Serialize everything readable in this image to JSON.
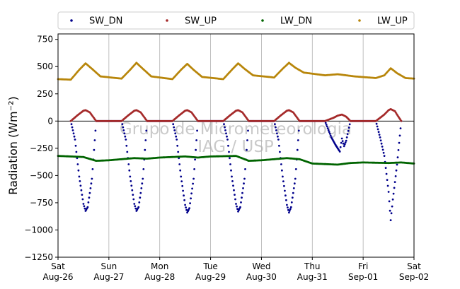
{
  "chart_data": {
    "type": "scatter",
    "ylabel": "Radiation (Wm⁻²)",
    "ylim": [
      -1250,
      800
    ],
    "yticks": [
      -1250,
      -1000,
      -750,
      -500,
      -250,
      0,
      250,
      500,
      750
    ],
    "ytick_labels": [
      "−1250",
      "−1000",
      "−750",
      "−500",
      "−250",
      "0",
      "250",
      "500",
      "750"
    ],
    "xlim": [
      "2023-08-26 00:00",
      "2023-09-02 00:00"
    ],
    "xticks": [
      {
        "date": "2023-08-26",
        "day": "Sat",
        "label": "Aug-26"
      },
      {
        "date": "2023-08-27",
        "day": "Sun",
        "label": "Aug-27"
      },
      {
        "date": "2023-08-28",
        "day": "Mon",
        "label": "Aug-28"
      },
      {
        "date": "2023-08-29",
        "day": "Tue",
        "label": "Aug-29"
      },
      {
        "date": "2023-08-30",
        "day": "Wed",
        "label": "Aug-30"
      },
      {
        "date": "2023-08-31",
        "day": "Thu",
        "label": "Aug-31"
      },
      {
        "date": "2023-09-01",
        "day": "Fri",
        "label": "Sep-01"
      },
      {
        "date": "2023-09-02",
        "day": "Sat",
        "label": "Sep-02"
      }
    ],
    "grid": "vertical",
    "zero_line": true,
    "legend_position": "top",
    "watermark": [
      "Grupo de Micrometeorologia",
      "IAG / USP"
    ],
    "series": [
      {
        "name": "SW_DN",
        "color": "#00008b",
        "points": [
          [
            "2023-08-26 06:00",
            0
          ],
          [
            "2023-08-26 08:00",
            -170
          ],
          [
            "2023-08-26 10:00",
            -510
          ],
          [
            "2023-08-26 12:00",
            -760
          ],
          [
            "2023-08-26 13:00",
            -825
          ],
          [
            "2023-08-26 14:00",
            -790
          ],
          [
            "2023-08-26 16:00",
            -530
          ],
          [
            "2023-08-26 18:00",
            0
          ],
          [
            "2023-08-27 06:00",
            0
          ],
          [
            "2023-08-27 08:00",
            -170
          ],
          [
            "2023-08-27 10:00",
            -510
          ],
          [
            "2023-08-27 12:00",
            -760
          ],
          [
            "2023-08-27 13:00",
            -825
          ],
          [
            "2023-08-27 14:00",
            -790
          ],
          [
            "2023-08-27 16:00",
            -530
          ],
          [
            "2023-08-27 18:00",
            0
          ],
          [
            "2023-08-28 06:00",
            0
          ],
          [
            "2023-08-28 08:00",
            -170
          ],
          [
            "2023-08-28 10:00",
            -510
          ],
          [
            "2023-08-28 12:00",
            -770
          ],
          [
            "2023-08-28 13:00",
            -840
          ],
          [
            "2023-08-28 14:00",
            -800
          ],
          [
            "2023-08-28 16:00",
            -530
          ],
          [
            "2023-08-28 18:00",
            0
          ],
          [
            "2023-08-29 06:00",
            0
          ],
          [
            "2023-08-29 08:00",
            -170
          ],
          [
            "2023-08-29 10:00",
            -510
          ],
          [
            "2023-08-29 12:00",
            -760
          ],
          [
            "2023-08-29 13:00",
            -830
          ],
          [
            "2023-08-29 14:00",
            -790
          ],
          [
            "2023-08-29 16:00",
            -530
          ],
          [
            "2023-08-29 18:00",
            0
          ],
          [
            "2023-08-30 06:00",
            0
          ],
          [
            "2023-08-30 08:00",
            -170
          ],
          [
            "2023-08-30 10:00",
            -510
          ],
          [
            "2023-08-30 12:00",
            -770
          ],
          [
            "2023-08-30 13:00",
            -840
          ],
          [
            "2023-08-30 14:00",
            -790
          ],
          [
            "2023-08-30 16:00",
            -530
          ],
          [
            "2023-08-30 18:00",
            0
          ],
          [
            "2023-08-31 06:00",
            0
          ],
          [
            "2023-08-31 09:00",
            -150
          ],
          [
            "2023-08-31 11:00",
            -220
          ],
          [
            "2023-08-31 13:00",
            -280
          ],
          [
            "2023-08-31 14:00",
            -160
          ],
          [
            "2023-08-31 15:00",
            -230
          ],
          [
            "2023-08-31 16:00",
            -180
          ],
          [
            "2023-08-31 18:00",
            0
          ],
          [
            "2023-09-01 06:00",
            0
          ],
          [
            "2023-09-01 08:00",
            -150
          ],
          [
            "2023-09-01 10:00",
            -320
          ],
          [
            "2023-09-01 12:00",
            -650
          ],
          [
            "2023-09-01 13:00",
            -910
          ],
          [
            "2023-09-01 14:00",
            -720
          ],
          [
            "2023-09-01 16:00",
            -400
          ],
          [
            "2023-09-01 18:00",
            0
          ]
        ]
      },
      {
        "name": "SW_UP",
        "color": "#a52a2a",
        "points": [
          [
            "2023-08-26 06:00",
            0
          ],
          [
            "2023-08-26 09:00",
            50
          ],
          [
            "2023-08-26 12:00",
            95
          ],
          [
            "2023-08-26 13:00",
            100
          ],
          [
            "2023-08-26 15:00",
            80
          ],
          [
            "2023-08-26 18:00",
            0
          ],
          [
            "2023-08-27 06:00",
            0
          ],
          [
            "2023-08-27 09:00",
            50
          ],
          [
            "2023-08-27 12:00",
            95
          ],
          [
            "2023-08-27 13:00",
            100
          ],
          [
            "2023-08-27 15:00",
            80
          ],
          [
            "2023-08-27 18:00",
            0
          ],
          [
            "2023-08-28 06:00",
            0
          ],
          [
            "2023-08-28 09:00",
            50
          ],
          [
            "2023-08-28 12:00",
            95
          ],
          [
            "2023-08-28 13:00",
            100
          ],
          [
            "2023-08-28 15:00",
            80
          ],
          [
            "2023-08-28 18:00",
            0
          ],
          [
            "2023-08-29 06:00",
            0
          ],
          [
            "2023-08-29 09:00",
            50
          ],
          [
            "2023-08-29 12:00",
            95
          ],
          [
            "2023-08-29 13:00",
            100
          ],
          [
            "2023-08-29 15:00",
            80
          ],
          [
            "2023-08-29 18:00",
            0
          ],
          [
            "2023-08-30 06:00",
            0
          ],
          [
            "2023-08-30 09:00",
            50
          ],
          [
            "2023-08-30 12:00",
            95
          ],
          [
            "2023-08-30 13:00",
            100
          ],
          [
            "2023-08-30 15:00",
            80
          ],
          [
            "2023-08-30 18:00",
            0
          ],
          [
            "2023-08-31 06:00",
            0
          ],
          [
            "2023-08-31 10:00",
            30
          ],
          [
            "2023-08-31 12:00",
            50
          ],
          [
            "2023-08-31 14:00",
            60
          ],
          [
            "2023-08-31 16:00",
            40
          ],
          [
            "2023-08-31 18:00",
            0
          ],
          [
            "2023-09-01 06:00",
            0
          ],
          [
            "2023-09-01 10:00",
            60
          ],
          [
            "2023-09-01 12:00",
            100
          ],
          [
            "2023-09-01 13:00",
            110
          ],
          [
            "2023-09-01 15:00",
            90
          ],
          [
            "2023-09-01 18:00",
            0
          ]
        ]
      },
      {
        "name": "LW_DN",
        "color": "#006400",
        "points": [
          [
            "2023-08-26 00:00",
            -320
          ],
          [
            "2023-08-26 12:00",
            -330
          ],
          [
            "2023-08-26 18:00",
            -365
          ],
          [
            "2023-08-27 00:00",
            -360
          ],
          [
            "2023-08-27 12:00",
            -340
          ],
          [
            "2023-08-27 18:00",
            -345
          ],
          [
            "2023-08-28 00:00",
            -335
          ],
          [
            "2023-08-28 12:00",
            -325
          ],
          [
            "2023-08-28 18:00",
            -335
          ],
          [
            "2023-08-29 00:00",
            -325
          ],
          [
            "2023-08-29 12:00",
            -320
          ],
          [
            "2023-08-29 18:00",
            -365
          ],
          [
            "2023-08-30 00:00",
            -360
          ],
          [
            "2023-08-30 12:00",
            -340
          ],
          [
            "2023-08-30 18:00",
            -350
          ],
          [
            "2023-08-31 00:00",
            -390
          ],
          [
            "2023-08-31 12:00",
            -400
          ],
          [
            "2023-08-31 18:00",
            -385
          ],
          [
            "2023-09-01 00:00",
            -380
          ],
          [
            "2023-09-01 12:00",
            -385
          ],
          [
            "2023-09-01 18:00",
            -380
          ],
          [
            "2023-09-02 00:00",
            -390
          ]
        ]
      },
      {
        "name": "LW_UP",
        "color": "#b8860b",
        "points": [
          [
            "2023-08-26 00:00",
            385
          ],
          [
            "2023-08-26 06:00",
            380
          ],
          [
            "2023-08-26 10:00",
            470
          ],
          [
            "2023-08-26 13:00",
            530
          ],
          [
            "2023-08-26 16:00",
            480
          ],
          [
            "2023-08-26 20:00",
            410
          ],
          [
            "2023-08-27 06:00",
            390
          ],
          [
            "2023-08-27 10:00",
            470
          ],
          [
            "2023-08-27 13:00",
            535
          ],
          [
            "2023-08-27 16:00",
            480
          ],
          [
            "2023-08-27 20:00",
            410
          ],
          [
            "2023-08-28 06:00",
            385
          ],
          [
            "2023-08-28 10:00",
            470
          ],
          [
            "2023-08-28 13:00",
            525
          ],
          [
            "2023-08-28 16:00",
            470
          ],
          [
            "2023-08-28 20:00",
            405
          ],
          [
            "2023-08-29 06:00",
            385
          ],
          [
            "2023-08-29 10:00",
            470
          ],
          [
            "2023-08-29 13:00",
            530
          ],
          [
            "2023-08-29 16:00",
            480
          ],
          [
            "2023-08-29 20:00",
            420
          ],
          [
            "2023-08-30 06:00",
            400
          ],
          [
            "2023-08-30 10:00",
            480
          ],
          [
            "2023-08-30 13:00",
            535
          ],
          [
            "2023-08-30 16:00",
            490
          ],
          [
            "2023-08-30 20:00",
            445
          ],
          [
            "2023-08-31 06:00",
            420
          ],
          [
            "2023-08-31 12:00",
            430
          ],
          [
            "2023-08-31 20:00",
            410
          ],
          [
            "2023-09-01 06:00",
            395
          ],
          [
            "2023-09-01 10:00",
            420
          ],
          [
            "2023-09-01 13:00",
            485
          ],
          [
            "2023-09-01 16:00",
            440
          ],
          [
            "2023-09-01 20:00",
            395
          ],
          [
            "2023-09-02 00:00",
            390
          ]
        ]
      }
    ]
  }
}
